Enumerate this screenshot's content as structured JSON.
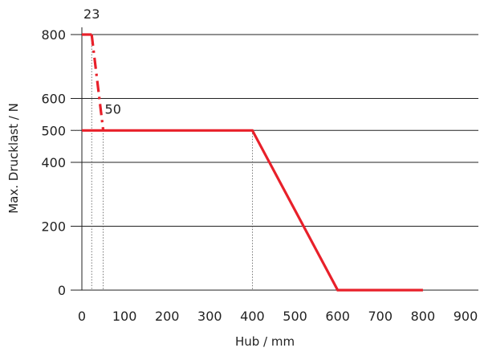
{
  "chart_data": {
    "type": "line",
    "title": "",
    "xlabel": "Hub / mm",
    "ylabel": "Max. Drucklast / N",
    "xlim": [
      0,
      900
    ],
    "ylim": [
      0,
      800
    ],
    "xticks": [
      0,
      100,
      200,
      300,
      400,
      500,
      600,
      700,
      800,
      900
    ],
    "xtick_labels": [
      "0",
      "100",
      "200",
      "300",
      "400",
      "500",
      "600",
      "700",
      "800",
      "900"
    ],
    "yticks": [
      0,
      200,
      400,
      500,
      600,
      800
    ],
    "ytick_labels": [
      "0",
      "200",
      "400",
      "500",
      "600",
      "800"
    ],
    "grid": "horizontal lines at y ticks",
    "series": [
      {
        "style": "solid",
        "color": "#e8202a",
        "points": [
          [
            0,
            800
          ],
          [
            23,
            800
          ]
        ]
      },
      {
        "style": "dash-dot",
        "color": "#e8202a",
        "points": [
          [
            23,
            800
          ],
          [
            50,
            500
          ]
        ]
      },
      {
        "style": "solid",
        "color": "#e8202a",
        "points": [
          [
            0,
            500
          ],
          [
            400,
            500
          ],
          [
            600,
            0
          ],
          [
            800,
            0
          ]
        ]
      }
    ],
    "reference_lines": [
      {
        "axis": "x",
        "value": 23,
        "style": "dotted"
      },
      {
        "axis": "x",
        "value": 50,
        "style": "dotted"
      },
      {
        "axis": "x",
        "value": 400,
        "style": "dotted"
      },
      {
        "axis": "y",
        "value": 500,
        "style": "dotted"
      }
    ],
    "annotations": [
      {
        "text": "23",
        "x": 23,
        "y": 800,
        "position": "above"
      },
      {
        "text": "50",
        "x": 50,
        "y": 500,
        "position": "above-right"
      }
    ]
  }
}
